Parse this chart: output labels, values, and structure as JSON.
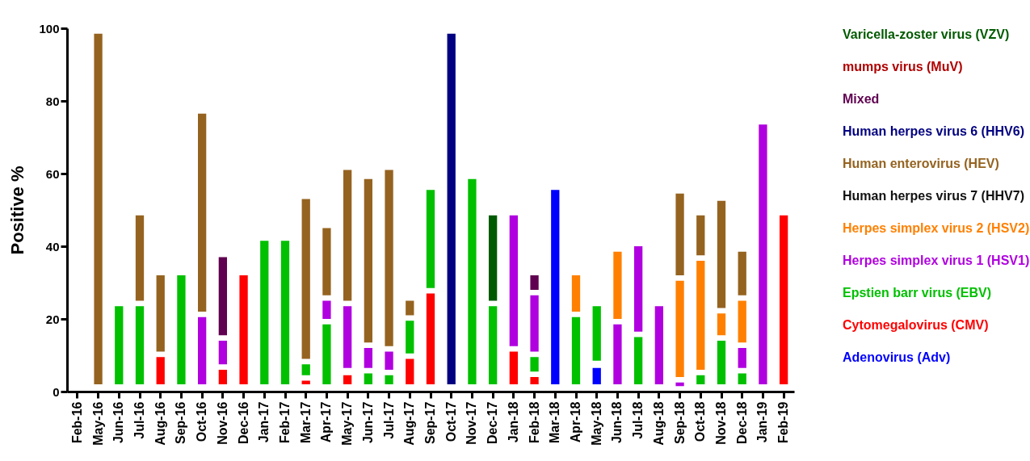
{
  "chart_data": {
    "type": "bar",
    "ylabel": "Positive %",
    "ylim": [
      0,
      100
    ],
    "yticks": [
      0,
      20,
      40,
      60,
      80,
      100
    ],
    "legend": "right",
    "categories": [
      "Feb-16",
      "May-16",
      "Jun-16",
      "Jul-16",
      "Aug-16",
      "Sep-16",
      "Oct-16",
      "Nov-16",
      "Dec-16",
      "Jan-17",
      "Feb-17",
      "Mar-17",
      "Apr-17",
      "May-17",
      "Jun-17",
      "Jul-17",
      "Aug-17",
      "Sep-17",
      "Oct-17",
      "Nov-17",
      "Dec-17",
      "Jan-18",
      "Feb-18",
      "Mar-18",
      "Apr-18",
      "May-18",
      "Jun-18",
      "Jul-18",
      "Aug-18",
      "Sep-18",
      "Oct-18",
      "Nov-18",
      "Dec-18",
      "Jan-19",
      "Feb-19"
    ],
    "series": [
      {
        "name": "Varicella-zoster virus (VZV)",
        "color": "#005a00",
        "base": [
          null,
          null,
          null,
          null,
          null,
          null,
          null,
          null,
          null,
          null,
          null,
          null,
          null,
          null,
          null,
          null,
          null,
          null,
          null,
          null,
          25,
          null,
          null,
          null,
          null,
          null,
          null,
          null,
          null,
          null,
          null,
          null,
          null,
          null,
          null
        ],
        "values": [
          null,
          null,
          null,
          null,
          null,
          null,
          null,
          null,
          null,
          null,
          null,
          null,
          null,
          null,
          null,
          null,
          null,
          null,
          null,
          null,
          23.5,
          null,
          null,
          null,
          null,
          null,
          null,
          null,
          null,
          null,
          null,
          null,
          null,
          null,
          null
        ]
      },
      {
        "name": "mumps virus (MuV)",
        "color": "#b00000",
        "base": [
          null,
          null,
          null,
          null,
          null,
          null,
          null,
          null,
          null,
          null,
          null,
          null,
          null,
          null,
          null,
          null,
          null,
          null,
          null,
          null,
          null,
          null,
          null,
          null,
          null,
          null,
          null,
          null,
          null,
          null,
          null,
          null,
          null,
          null,
          null
        ],
        "values": [
          null,
          null,
          null,
          null,
          null,
          null,
          null,
          null,
          null,
          null,
          null,
          null,
          null,
          null,
          null,
          null,
          null,
          null,
          null,
          null,
          null,
          null,
          null,
          null,
          null,
          null,
          null,
          null,
          null,
          null,
          null,
          null,
          null,
          null,
          null
        ]
      },
      {
        "name": "Mixed",
        "color": "#600050",
        "base": [
          null,
          null,
          null,
          null,
          null,
          null,
          null,
          15.5,
          null,
          null,
          null,
          null,
          null,
          null,
          null,
          null,
          null,
          null,
          null,
          null,
          null,
          null,
          28,
          null,
          null,
          null,
          null,
          null,
          null,
          null,
          null,
          null,
          null,
          null,
          null
        ],
        "values": [
          null,
          null,
          null,
          null,
          null,
          null,
          null,
          21.5,
          null,
          null,
          null,
          null,
          null,
          null,
          null,
          null,
          null,
          null,
          null,
          null,
          null,
          null,
          4,
          null,
          null,
          null,
          null,
          null,
          null,
          null,
          null,
          null,
          null,
          null,
          null
        ]
      },
      {
        "name": "Human herpes virus 6 (HHV6)",
        "color": "#000080",
        "base": [
          null,
          null,
          null,
          null,
          null,
          null,
          null,
          null,
          null,
          null,
          null,
          null,
          null,
          null,
          null,
          null,
          null,
          null,
          2,
          null,
          null,
          null,
          null,
          null,
          null,
          null,
          null,
          null,
          null,
          null,
          null,
          null,
          null,
          null,
          null
        ],
        "values": [
          null,
          null,
          null,
          null,
          null,
          null,
          null,
          null,
          null,
          null,
          null,
          null,
          null,
          null,
          null,
          null,
          null,
          null,
          96.5,
          null,
          null,
          null,
          null,
          null,
          null,
          null,
          null,
          null,
          null,
          null,
          null,
          null,
          null,
          null,
          null
        ]
      },
      {
        "name": "Human enterovirus (HEV)",
        "color": "#956320",
        "base": [
          null,
          2,
          null,
          25,
          11,
          null,
          22,
          null,
          null,
          null,
          null,
          9,
          26.5,
          25,
          13.5,
          12.5,
          21,
          null,
          null,
          null,
          null,
          null,
          null,
          null,
          null,
          null,
          null,
          null,
          null,
          32,
          37.5,
          23,
          26.5,
          null,
          null
        ],
        "values": [
          null,
          96.5,
          null,
          23.5,
          21,
          null,
          54.5,
          null,
          null,
          null,
          null,
          44,
          18.5,
          36,
          45,
          48.5,
          4,
          null,
          null,
          null,
          null,
          null,
          null,
          null,
          null,
          null,
          null,
          null,
          null,
          22.5,
          11,
          29.5,
          12,
          null,
          null
        ]
      },
      {
        "name": "Human herpes virus 7 (HHV7)",
        "color": "#111111",
        "base": [
          null,
          null,
          null,
          null,
          null,
          null,
          null,
          null,
          null,
          null,
          null,
          null,
          null,
          null,
          null,
          null,
          null,
          null,
          null,
          null,
          null,
          null,
          null,
          null,
          null,
          null,
          null,
          null,
          null,
          null,
          null,
          null,
          null,
          null,
          null
        ],
        "values": [
          null,
          null,
          null,
          null,
          null,
          null,
          null,
          null,
          null,
          null,
          null,
          null,
          null,
          null,
          null,
          null,
          null,
          null,
          null,
          null,
          null,
          null,
          null,
          null,
          null,
          null,
          null,
          null,
          null,
          null,
          null,
          null,
          null,
          null,
          null
        ]
      },
      {
        "name": "Herpes simplex virus 2 (HSV2)",
        "color": "#ff8000",
        "base": [
          null,
          null,
          null,
          null,
          null,
          null,
          null,
          null,
          null,
          null,
          null,
          null,
          null,
          null,
          null,
          null,
          null,
          null,
          null,
          null,
          null,
          null,
          null,
          null,
          22,
          null,
          20,
          null,
          null,
          4,
          6,
          15.5,
          13.5,
          null,
          null
        ],
        "values": [
          null,
          null,
          null,
          null,
          null,
          null,
          null,
          null,
          null,
          null,
          null,
          null,
          null,
          null,
          null,
          null,
          null,
          null,
          null,
          null,
          null,
          null,
          null,
          null,
          10,
          null,
          18.5,
          null,
          null,
          26.5,
          30,
          6,
          11.5,
          null,
          null
        ]
      },
      {
        "name": "Herpes simplex virus 1 (HSV1)",
        "color": "#b000e0",
        "base": [
          null,
          null,
          null,
          null,
          null,
          null,
          2,
          7.5,
          null,
          null,
          null,
          null,
          20,
          6.5,
          6.5,
          6,
          null,
          null,
          null,
          null,
          null,
          12.5,
          11,
          null,
          null,
          null,
          2,
          16.5,
          2,
          1.5,
          null,
          null,
          6.5,
          2,
          null
        ],
        "values": [
          null,
          null,
          null,
          null,
          null,
          null,
          18.5,
          6.5,
          null,
          null,
          null,
          null,
          5,
          17,
          5.5,
          5,
          null,
          null,
          null,
          null,
          null,
          36,
          15.5,
          null,
          null,
          null,
          16.5,
          23.5,
          21.5,
          1,
          null,
          null,
          5.5,
          71.5,
          null
        ]
      },
      {
        "name": "Epstien barr virus (EBV)",
        "color": "#00c000",
        "base": [
          null,
          null,
          2,
          2,
          null,
          2,
          null,
          null,
          null,
          2,
          2,
          4.5,
          2,
          null,
          2,
          2,
          10.5,
          28.5,
          null,
          2,
          2,
          null,
          5.5,
          null,
          2,
          8.5,
          null,
          2,
          null,
          null,
          2,
          2,
          2,
          null,
          null
        ],
        "values": [
          null,
          null,
          21.5,
          21.5,
          null,
          30,
          null,
          null,
          null,
          39.5,
          39.5,
          3,
          16.5,
          null,
          3,
          2.5,
          9,
          27,
          null,
          56.5,
          21.5,
          null,
          4,
          null,
          18.5,
          15,
          null,
          13,
          null,
          null,
          2.5,
          12,
          3,
          null,
          null
        ]
      },
      {
        "name": "Cytomegalovirus (CMV)",
        "color": "#ff0000",
        "base": [
          null,
          null,
          null,
          null,
          2,
          null,
          null,
          2,
          2,
          null,
          null,
          2,
          null,
          2,
          null,
          null,
          2,
          2,
          null,
          null,
          null,
          2,
          2,
          null,
          null,
          null,
          null,
          null,
          null,
          null,
          null,
          null,
          null,
          null,
          2
        ],
        "values": [
          null,
          null,
          null,
          null,
          7.5,
          null,
          null,
          4,
          30,
          null,
          null,
          1,
          null,
          2.5,
          null,
          null,
          7,
          25,
          null,
          null,
          null,
          9,
          2,
          null,
          null,
          null,
          null,
          null,
          null,
          null,
          null,
          null,
          null,
          null,
          46.5
        ]
      },
      {
        "name": "Adenovirus (Adv)",
        "color": "#0000ff",
        "base": [
          null,
          null,
          null,
          null,
          null,
          null,
          null,
          null,
          null,
          null,
          null,
          null,
          null,
          null,
          null,
          null,
          null,
          null,
          null,
          null,
          null,
          null,
          null,
          2,
          null,
          2,
          null,
          null,
          null,
          null,
          null,
          null,
          null,
          null,
          null
        ],
        "values": [
          null,
          null,
          null,
          null,
          null,
          null,
          null,
          null,
          null,
          null,
          null,
          null,
          null,
          null,
          null,
          null,
          null,
          null,
          null,
          null,
          null,
          null,
          null,
          53.5,
          null,
          4.5,
          null,
          null,
          null,
          null,
          null,
          null,
          null,
          null,
          null
        ]
      }
    ]
  }
}
